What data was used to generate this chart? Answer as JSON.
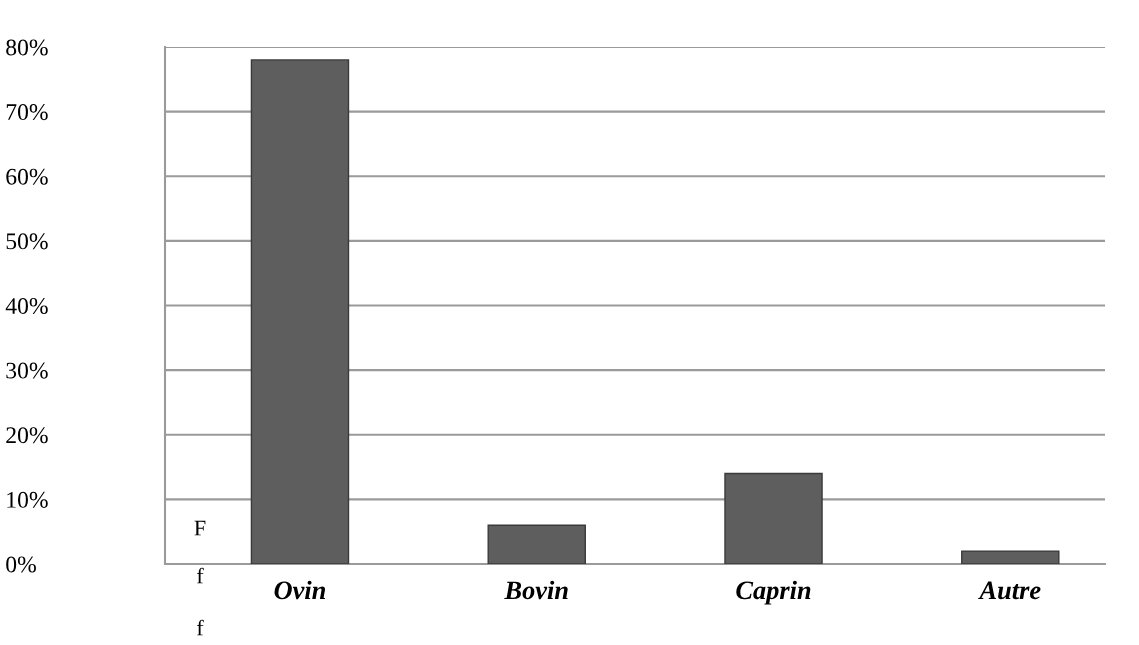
{
  "chart_data": {
    "type": "bar",
    "categories": [
      "Ovin",
      "Bovin",
      "Caprin",
      "Autre"
    ],
    "values": [
      78,
      6,
      14,
      2
    ],
    "color": "#5e5e5e",
    "ylim": [
      0,
      80
    ],
    "yticks": [
      {
        "value": 0,
        "label": "0%"
      },
      {
        "value": 10,
        "label": "10%"
      },
      {
        "value": 20,
        "label": "20%"
      },
      {
        "value": 30,
        "label": "30%"
      },
      {
        "value": 40,
        "label": "40%"
      },
      {
        "value": 50,
        "label": "50%"
      },
      {
        "value": 60,
        "label": "60%"
      },
      {
        "value": 70,
        "label": "70%"
      },
      {
        "value": 80,
        "label": "80%"
      }
    ],
    "grid": "y",
    "annotations": [
      "F",
      "f",
      "f"
    ]
  }
}
